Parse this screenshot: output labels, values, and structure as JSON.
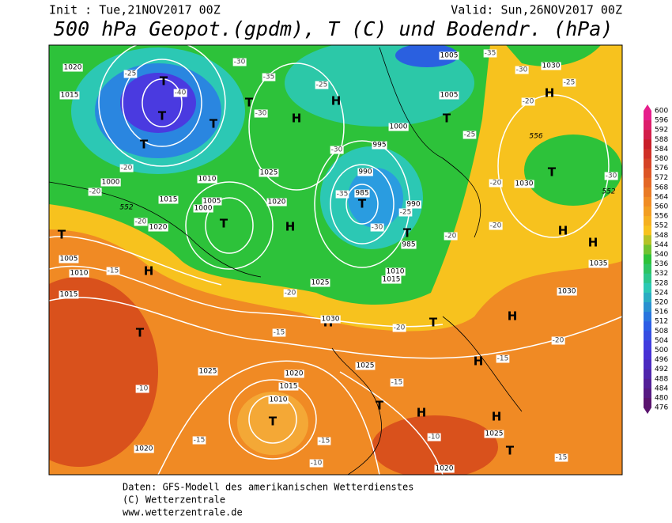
{
  "header": {
    "init": "Init : Tue,21NOV2017 00Z",
    "valid": "Valid: Sun,26NOV2017 00Z",
    "title": "500 hPa Geopot.(gpdm), T (C) und Bodendr. (hPa)"
  },
  "legend": {
    "levels": [
      600,
      596,
      592,
      588,
      584,
      580,
      576,
      572,
      568,
      564,
      560,
      556,
      552,
      548,
      544,
      540,
      536,
      532,
      528,
      524,
      520,
      516,
      512,
      508,
      504,
      500,
      496,
      492,
      488,
      484,
      480,
      476
    ]
  },
  "map": {
    "pressure_centers": [
      "T",
      "T",
      "T",
      "T",
      "T",
      "H",
      "H",
      "T",
      "T",
      "T",
      "T",
      "H",
      "T",
      "H",
      "T",
      "H",
      "T",
      "H",
      "H",
      "H",
      "H",
      "T",
      "T",
      "T",
      "H",
      "T",
      "H",
      "H"
    ],
    "isobar_labels": [
      1020,
      1015,
      1000,
      1015,
      1020,
      1005,
      1010,
      1015,
      1025,
      1030,
      1025,
      1025,
      1020,
      1015,
      1010,
      1020,
      1020,
      1025,
      1030,
      1030,
      1035,
      1030,
      1005,
      1005,
      995,
      990,
      985,
      990,
      985,
      1010,
      1015,
      1000,
      1025,
      1020,
      1010,
      1005,
      1000
    ],
    "geopotential_labels": [
      552,
      552,
      556
    ],
    "temperature_labels": [
      -30,
      -25,
      -40,
      -35,
      -30,
      -25,
      -30,
      -35,
      -30,
      -25,
      -20,
      -20,
      -20,
      -15,
      -20,
      -20,
      -15,
      -15,
      -10,
      -15,
      -15,
      -10,
      -10,
      -15,
      -15,
      -20,
      -20,
      -20,
      -25,
      -20,
      -25,
      -30,
      -35,
      -30,
      -20
    ]
  },
  "footer": {
    "line1": "Daten: GFS-Modell des amerikanischen Wetterdienstes",
    "line2": "(C) Wetterzentrale",
    "line3": "www.wetterzentrale.de"
  }
}
